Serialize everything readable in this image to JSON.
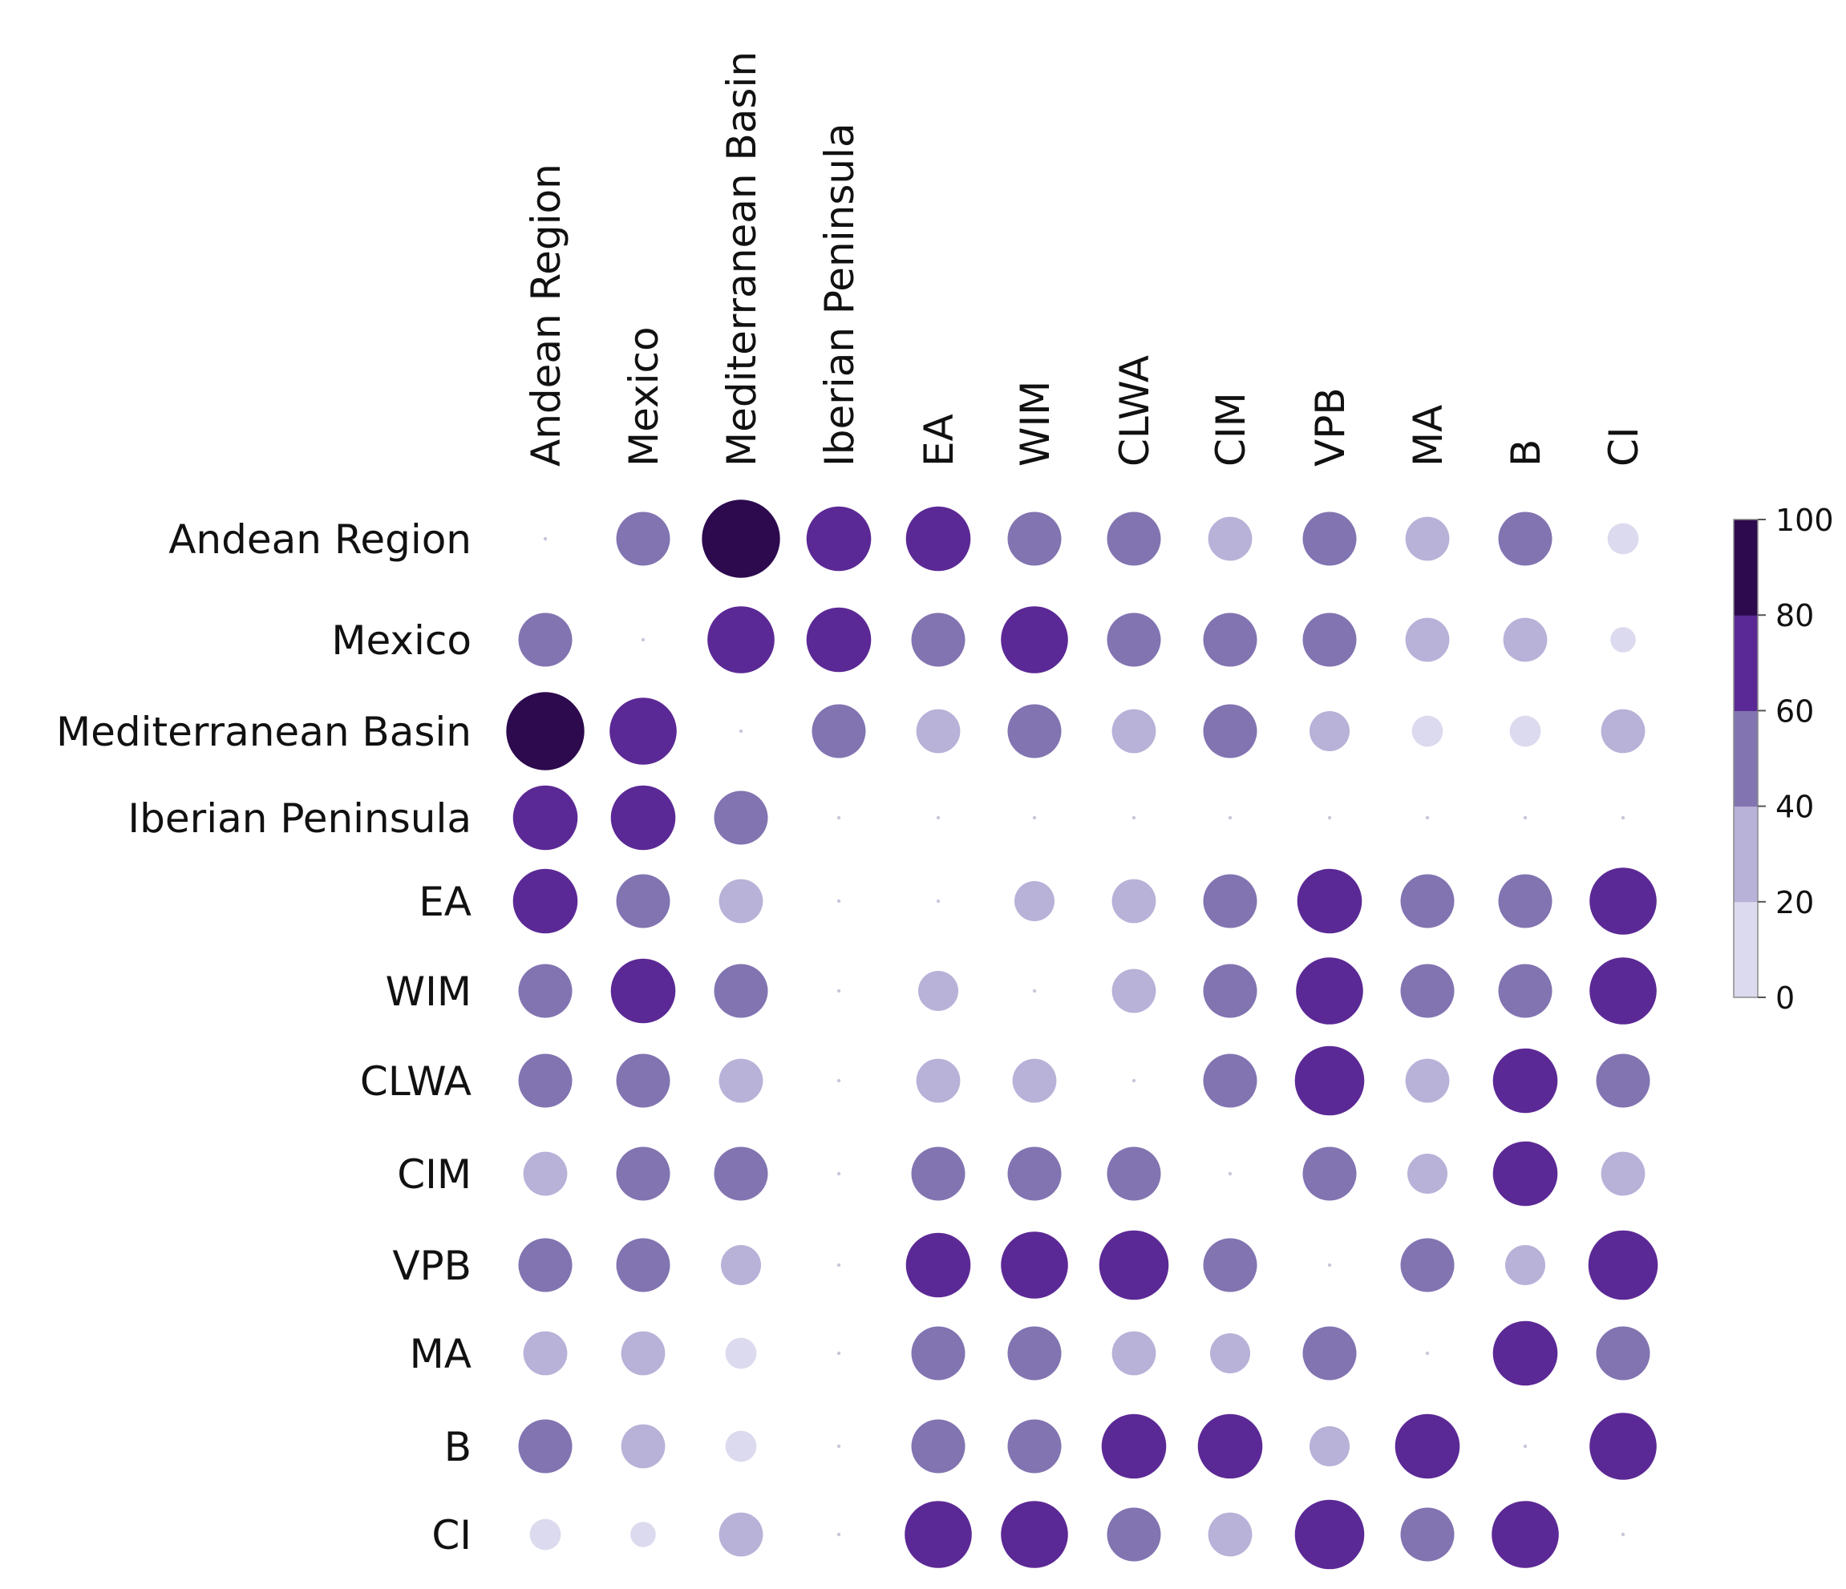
{
  "chart_data": {
    "type": "heatmap",
    "subtype": "bubble-matrix",
    "title": "",
    "xlabel": "",
    "ylabel": "",
    "categories": [
      "Andean Region",
      "Mexico",
      "Mediterranean Basin",
      "Iberian Peninsula",
      "EA",
      "WIM",
      "CLWA",
      "CIM",
      "VPB",
      "MA",
      "B",
      "CI"
    ],
    "row_labels": [
      "Andean Region",
      "Mexico",
      "Mediterranean Basin",
      "Iberian Peninsula",
      "EA",
      "WIM",
      "CLWA",
      "CIM",
      "VPB",
      "MA",
      "B",
      "CI"
    ],
    "column_labels": [
      "Andean Region",
      "Mexico",
      "Mediterranean Basin",
      "Iberian Peninsula",
      "EA",
      "WIM",
      "CLWA",
      "CIM",
      "VPB",
      "MA",
      "B",
      "CI"
    ],
    "values": [
      [
        0,
        45,
        95,
        65,
        65,
        45,
        45,
        30,
        45,
        30,
        45,
        15
      ],
      [
        45,
        0,
        70,
        65,
        45,
        70,
        45,
        45,
        45,
        30,
        30,
        10
      ],
      [
        95,
        70,
        0,
        45,
        30,
        45,
        30,
        45,
        25,
        15,
        15,
        30
      ],
      [
        65,
        65,
        45,
        0,
        0,
        0,
        0,
        0,
        0,
        0,
        0,
        0
      ],
      [
        65,
        45,
        30,
        0,
        0,
        25,
        30,
        45,
        65,
        45,
        45,
        70
      ],
      [
        45,
        65,
        45,
        0,
        25,
        0,
        30,
        45,
        70,
        45,
        45,
        70
      ],
      [
        45,
        45,
        30,
        0,
        30,
        30,
        0,
        45,
        75,
        30,
        65,
        45
      ],
      [
        30,
        45,
        45,
        0,
        45,
        45,
        45,
        0,
        45,
        25,
        65,
        30
      ],
      [
        45,
        45,
        25,
        0,
        65,
        70,
        75,
        45,
        0,
        45,
        25,
        75
      ],
      [
        30,
        30,
        15,
        0,
        45,
        45,
        30,
        25,
        45,
        0,
        65,
        45
      ],
      [
        45,
        30,
        15,
        0,
        45,
        45,
        65,
        65,
        25,
        65,
        0,
        70
      ],
      [
        15,
        10,
        30,
        0,
        70,
        70,
        45,
        30,
        75,
        45,
        70,
        0
      ]
    ],
    "colorbar": {
      "min": 0,
      "max": 100,
      "ticks": [
        0,
        20,
        40,
        60,
        80,
        100
      ],
      "tick_labels": [
        "0",
        "20",
        "40",
        "60",
        "80",
        "100"
      ],
      "colors": [
        "#dcdaee",
        "#b8b1d8",
        "#8274b1",
        "#5b2995",
        "#2d0a4e"
      ],
      "position": "right"
    },
    "grid": false,
    "legend": "colorbar"
  }
}
